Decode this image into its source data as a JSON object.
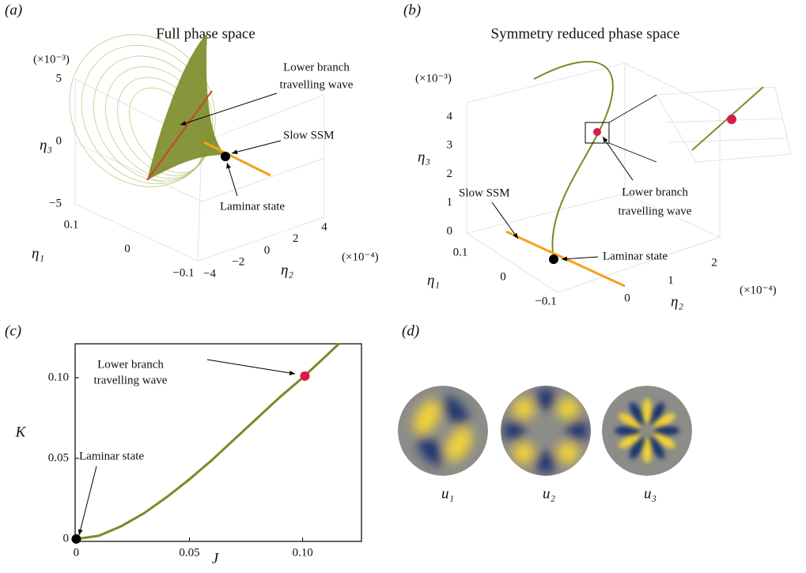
{
  "chart_data": [
    {
      "type": "phase3d",
      "label": "(a)",
      "title": "Full phase space",
      "z_scale": "(×10⁻³)",
      "x_scale": "(×10⁻⁴)",
      "xlabel": "η₂",
      "ylabel": "η₁",
      "zlabel": "η₃",
      "xlim": [
        -4,
        4
      ],
      "ylim": [
        -0.1,
        0.1
      ],
      "zlim": [
        -5,
        5
      ],
      "xticks": [
        {
          "value": -4,
          "label": "−4"
        },
        {
          "value": -2,
          "label": "−2"
        },
        0,
        2,
        4
      ],
      "yticks": [
        {
          "value": -0.1,
          "label": "−0.1"
        },
        0,
        0.1
      ],
      "zticks": [
        {
          "value": -5,
          "label": "−5"
        },
        0,
        5
      ],
      "annotations": [
        "Lower branch",
        "travelling wave",
        "Slow SSM",
        "Laminar state"
      ]
    },
    {
      "type": "phase3d",
      "label": "(b)",
      "title": "Symmetry reduced phase space",
      "z_scale": "(×10⁻³)",
      "x_scale": "(×10⁻⁴)",
      "xlabel": "η₂",
      "ylabel": "η₁",
      "zlabel": "η₃",
      "xlim": [
        0,
        2
      ],
      "ylim": [
        -0.1,
        0.1
      ],
      "zlim": [
        0,
        4
      ],
      "xticks": [
        0,
        1,
        2
      ],
      "yticks": [
        {
          "value": -0.1,
          "label": "−0.1"
        },
        0,
        0.1
      ],
      "zticks": [
        0,
        1,
        2,
        3,
        4
      ],
      "annotations": [
        "Slow SSM",
        "Lower branch",
        "travelling wave",
        "Laminar state"
      ]
    },
    {
      "type": "line",
      "label": "(c)",
      "xlabel": "J",
      "ylabel": "K",
      "xlim": [
        -0.0005,
        0.126
      ],
      "ylim": [
        -0.0015,
        0.121
      ],
      "xticks": [
        0,
        0.05,
        {
          "value": 0.1,
          "label": "0.10"
        }
      ],
      "yticks": [
        0,
        0.05,
        {
          "value": 0.1,
          "label": "0.10"
        }
      ],
      "series": [
        {
          "color": "#7a8a26",
          "x": [
            0,
            0.01,
            0.02,
            0.03,
            0.04,
            0.05,
            0.06,
            0.07,
            0.08,
            0.09,
            0.1,
            0.11,
            0.116
          ],
          "values": [
            0,
            0.002,
            0.008,
            0.016,
            0.026,
            0.037,
            0.049,
            0.062,
            0.075,
            0.088,
            0.1,
            0.113,
            0.121
          ]
        }
      ],
      "points": {
        "x": [
          0,
          0.101
        ],
        "values": [
          0,
          0.101
        ],
        "colors": [
          "#000000",
          "#d81b4a"
        ]
      },
      "annotations": [
        "Lower branch",
        "travelling wave",
        "Laminar state"
      ]
    },
    {
      "type": "modes",
      "label": "(d)",
      "labels": [
        "u₁",
        "u₂",
        "u₃"
      ]
    }
  ]
}
